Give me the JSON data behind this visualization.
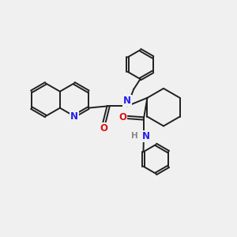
{
  "bg_color": "#f0f0f0",
  "bond_color": "#202020",
  "N_color": "#2020ee",
  "O_color": "#dd1111",
  "H_color": "#888888",
  "lw": 1.4,
  "dbo": 0.065,
  "figsize": [
    3.0,
    3.0
  ],
  "dpi": 100,
  "xlim": [
    0,
    10
  ],
  "ylim": [
    0,
    10
  ]
}
